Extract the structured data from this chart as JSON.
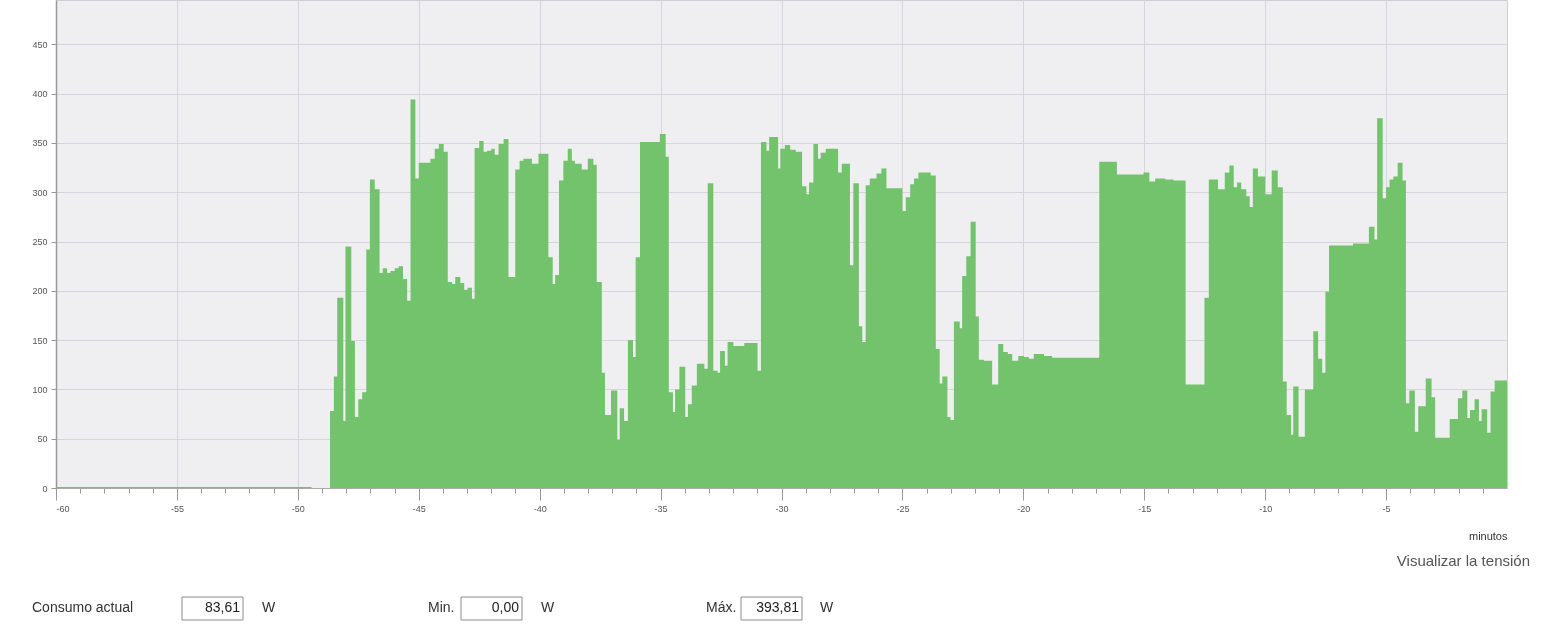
{
  "chart_data": {
    "type": "area",
    "xlabel": "minutos",
    "xlim": [
      -60,
      0
    ],
    "xticks": [
      -60,
      {
        "value": -59,
        "label": null
      },
      {
        "value": -58,
        "label": null
      },
      {
        "value": -57,
        "label": null
      },
      {
        "value": -56,
        "label": null
      },
      -55,
      {
        "value": -54,
        "label": null
      },
      {
        "value": -53,
        "label": null
      },
      {
        "value": -52,
        "label": null
      },
      {
        "value": -51,
        "label": null
      },
      -50,
      {
        "value": -49,
        "label": null
      },
      {
        "value": -48,
        "label": null
      },
      {
        "value": -47,
        "label": null
      },
      {
        "value": -46,
        "label": null
      },
      -45,
      {
        "value": -44,
        "label": null
      },
      {
        "value": -43,
        "label": null
      },
      {
        "value": -42,
        "label": null
      },
      {
        "value": -41,
        "label": null
      },
      -40,
      {
        "value": -39,
        "label": null
      },
      {
        "value": -38,
        "label": null
      },
      {
        "value": -37,
        "label": null
      },
      {
        "value": -36,
        "label": null
      },
      -35,
      {
        "value": -34,
        "label": null
      },
      {
        "value": -33,
        "label": null
      },
      {
        "value": -32,
        "label": null
      },
      {
        "value": -31,
        "label": null
      },
      -30,
      {
        "value": -29,
        "label": null
      },
      {
        "value": -28,
        "label": null
      },
      {
        "value": -27,
        "label": null
      },
      {
        "value": -26,
        "label": null
      },
      -25,
      {
        "value": -24,
        "label": null
      },
      {
        "value": -23,
        "label": null
      },
      {
        "value": -22,
        "label": null
      },
      {
        "value": -21,
        "label": null
      },
      -20,
      {
        "value": -19,
        "label": null
      },
      {
        "value": -18,
        "label": null
      },
      {
        "value": -17,
        "label": null
      },
      {
        "value": -16,
        "label": null
      },
      -15,
      {
        "value": -14,
        "label": null
      },
      {
        "value": -13,
        "label": null
      },
      {
        "value": -12,
        "label": null
      },
      {
        "value": -11,
        "label": null
      },
      -10,
      {
        "value": -9,
        "label": null
      },
      {
        "value": -8,
        "label": null
      },
      {
        "value": -7,
        "label": null
      },
      {
        "value": -6,
        "label": null
      },
      -5,
      {
        "value": -4,
        "label": null
      },
      {
        "value": -3,
        "label": null
      },
      {
        "value": -2,
        "label": null
      },
      {
        "value": -1,
        "label": null
      }
    ],
    "ylim": [
      0,
      495
    ],
    "yticks": [
      0,
      50,
      100,
      150,
      200,
      250,
      300,
      350,
      400,
      450
    ],
    "grid": true,
    "series": [
      {
        "color": "#72c36b",
        "x": [
          -60,
          -49.43,
          -48.67,
          -48.51,
          -48.37,
          -48.12,
          -48.03,
          -47.79,
          -47.64,
          -47.5,
          -47.34,
          -47.17,
          -47.02,
          -46.82,
          -46.62,
          -46.49,
          -46.31,
          -46.17,
          -45.99,
          -45.83,
          -45.65,
          -45.48,
          -45.34,
          -45.14,
          -45.0,
          -44.52,
          -44.34,
          -44.17,
          -43.97,
          -43.8,
          -43.62,
          -43.49,
          -43.28,
          -43.12,
          -42.98,
          -42.8,
          -42.69,
          -42.5,
          -42.32,
          -42.18,
          -42.0,
          -41.86,
          -41.7,
          -41.49,
          -41.29,
          -41.01,
          -40.83,
          -40.67,
          -40.32,
          -40.05,
          -39.64,
          -39.46,
          -39.36,
          -39.2,
          -39.02,
          -38.84,
          -38.67,
          -38.54,
          -38.26,
          -38.01,
          -37.78,
          -37.64,
          -37.43,
          -37.3,
          -37.05,
          -36.79,
          -36.69,
          -36.51,
          -36.35,
          -36.14,
          -36.03,
          -35.85,
          -35.03,
          -34.79,
          -34.66,
          -34.49,
          -34.4,
          -34.22,
          -33.98,
          -33.87,
          -33.71,
          -33.5,
          -33.19,
          -33.05,
          -32.82,
          -32.64,
          -32.54,
          -32.34,
          -32.23,
          -31.99,
          -31.54,
          -30.99,
          -30.85,
          -30.62,
          -30.51,
          -30.14,
          -30.05,
          -29.86,
          -29.64,
          -29.41,
          -29.15,
          -28.97,
          -28.86,
          -28.68,
          -28.49,
          -28.38,
          -28.17,
          -27.66,
          -27.51,
          -27.17,
          -27.03,
          -26.8,
          -26.66,
          -26.52,
          -26.35,
          -26.07,
          -25.87,
          -25.66,
          -25.0,
          -24.86,
          -24.68,
          -24.52,
          -24.34,
          -23.83,
          -23.62,
          -23.46,
          -23.35,
          -23.14,
          -23.01,
          -22.87,
          -22.63,
          -22.53,
          -22.36,
          -22.18,
          -21.97,
          -21.84,
          -21.63,
          -21.29,
          -21.04,
          -20.83,
          -20.64,
          -20.46,
          -20.21,
          -19.98,
          -19.77,
          -19.57,
          -19.15,
          -18.81,
          -16.86,
          -16.13,
          -15.03,
          -14.79,
          -14.55,
          -14.13,
          -13.79,
          -13.29,
          -12.51,
          -12.33,
          -11.95,
          -11.67,
          -11.48,
          -11.3,
          -11.16,
          -10.99,
          -10.78,
          -10.64,
          -10.51,
          -10.3,
          -10.0,
          -9.73,
          -9.48,
          -9.27,
          -9.11,
          -8.93,
          -8.84,
          -8.62,
          -8.36,
          -8.01,
          -7.81,
          -7.64,
          -7.51,
          -7.36,
          -6.37,
          -5.71,
          -5.48,
          -5.37,
          -5.14,
          -5.0,
          -4.86,
          -4.7,
          -4.52,
          -4.32,
          -4.18,
          -4.04,
          -3.81,
          -3.67,
          -3.36,
          -3.12,
          -2.97,
          -2.37,
          -2.03,
          -1.85,
          -1.64,
          -1.53,
          -1.34,
          -1.16,
          -1.05,
          -0.82,
          -0.68,
          -0.51,
          0
        ],
        "values": [
          1,
          0,
          78,
          113,
          193,
          68,
          245,
          149,
          72,
          90,
          97,
          242,
          313,
          303,
          218,
          223,
          218,
          220,
          223,
          225,
          212,
          190,
          394,
          314,
          330,
          334,
          344,
          349,
          341,
          209,
          207,
          214,
          208,
          201,
          203,
          192,
          345,
          352,
          341,
          342,
          344,
          338,
          349,
          354,
          214,
          323,
          332,
          334,
          329,
          339,
          234,
          207,
          216,
          312,
          332,
          344,
          332,
          329,
          323,
          334,
          328,
          209,
          117,
          74,
          99,
          49,
          81,
          68,
          150,
          133,
          234,
          351,
          359,
          336,
          97,
          77,
          100,
          123,
          72,
          85,
          104,
          126,
          121,
          309,
          119,
          117,
          139,
          124,
          148,
          144,
          147,
          119,
          351,
          342,
          356,
          324,
          344,
          348,
          343,
          341,
          306,
          298,
          310,
          349,
          334,
          340,
          344,
          320,
          329,
          226,
          309,
          164,
          148,
          307,
          314,
          319,
          324,
          304,
          281,
          295,
          308,
          314,
          320,
          317,
          141,
          106,
          113,
          72,
          69,
          169,
          162,
          215,
          235,
          270,
          174,
          130,
          129,
          105,
          146,
          138,
          136,
          129,
          134,
          133,
          131,
          136,
          134,
          132,
          331,
          318,
          320,
          311,
          314,
          313,
          312,
          105,
          193,
          313,
          303,
          320,
          327,
          305,
          310,
          303,
          296,
          285,
          324,
          316,
          298,
          322,
          305,
          108,
          74,
          54,
          103,
          52,
          100,
          159,
          131,
          117,
          199,
          246,
          248,
          265,
          252,
          375,
          294,
          305,
          313,
          316,
          330,
          312,
          86,
          99,
          57,
          83,
          111,
          92,
          51,
          70,
          91,
          99,
          71,
          79,
          90,
          68,
          80,
          56,
          98,
          109,
          109
        ]
      }
    ],
    "annotations": [
      "Visualizar la tensión",
      "Consumo actual",
      "83,61",
      "W",
      "Min.",
      "0,00",
      "W",
      "Máx.",
      "393,81",
      "W"
    ]
  }
}
